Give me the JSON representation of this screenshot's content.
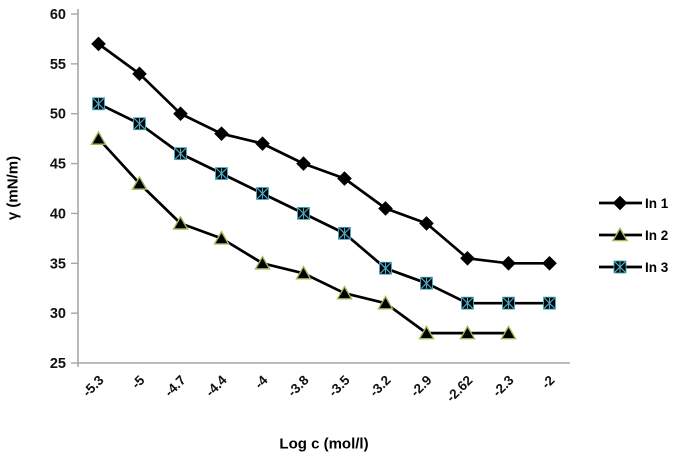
{
  "chart_data": {
    "type": "line",
    "title": "",
    "xlabel": "Log c (mol/l)",
    "ylabel": "γ (mN/m)",
    "ylim": [
      25,
      60
    ],
    "yticks": [
      25,
      30,
      35,
      40,
      45,
      50,
      55,
      60
    ],
    "grid": false,
    "legend_position": "right",
    "categories": [
      "-5.3",
      "-5",
      "-4.7",
      "-4.4",
      "-4",
      "-3.8",
      "-3.5",
      "-3.2",
      "-2.9",
      "-2.62",
      "-2.3",
      "-2"
    ],
    "series": [
      {
        "name": "In 1",
        "marker": "diamond",
        "line_color": "#000000",
        "marker_fill": "#000000",
        "marker_stroke": "#000000",
        "values": [
          57,
          54,
          50,
          48,
          47,
          45,
          43.5,
          40.5,
          39,
          35.5,
          35,
          35
        ]
      },
      {
        "name": "In 2",
        "marker": "triangle",
        "line_color": "#000000",
        "marker_fill": "#000000",
        "marker_stroke": "#9BBB59",
        "values": [
          47.5,
          43,
          39,
          37.5,
          35,
          34,
          32,
          31,
          28,
          28,
          28,
          null
        ]
      },
      {
        "name": "In 3",
        "marker": "square-x",
        "line_color": "#000000",
        "marker_fill": "#000000",
        "marker_stroke": "#4BACC6",
        "values": [
          51,
          49,
          46,
          44,
          42,
          40,
          38,
          34.5,
          33,
          31,
          31,
          31
        ]
      }
    ],
    "style": {
      "axis_color": "#A6A6A6",
      "tick_label_color": "#111111",
      "line_width": 2.7
    }
  }
}
